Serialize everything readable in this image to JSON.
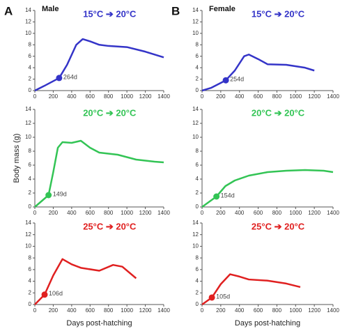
{
  "chart_data": [
    {
      "type": "line",
      "panel_label": "A",
      "subtitle": "Male",
      "title": "15°C ➔ 20°C",
      "x": [
        0,
        100,
        264,
        350,
        450,
        520,
        600,
        700,
        800,
        1000,
        1200,
        1400
      ],
      "series": [
        {
          "color": "#3434c8",
          "values": [
            0,
            0.8,
            2.2,
            4.5,
            8,
            9,
            8.6,
            8,
            7.8,
            7.6,
            6.8,
            5.8
          ]
        }
      ],
      "annotation": {
        "x": 264,
        "y": 2.2,
        "text": "264d"
      },
      "xlim": [
        0,
        1400
      ],
      "ylim": [
        0,
        14
      ],
      "xticks": [
        0,
        200,
        400,
        600,
        800,
        1000,
        1200,
        1400
      ],
      "yticks": [
        0,
        2,
        4,
        6,
        8,
        10,
        12,
        14
      ]
    },
    {
      "type": "line",
      "panel_label": "B",
      "subtitle": "Female",
      "title": "15°C ➔ 20°C",
      "x": [
        0,
        100,
        254,
        350,
        450,
        500,
        600,
        700,
        900,
        1100,
        1200
      ],
      "series": [
        {
          "color": "#3434c8",
          "values": [
            0,
            0.5,
            1.8,
            3.5,
            6,
            6.3,
            5.5,
            4.6,
            4.5,
            4,
            3.5
          ]
        }
      ],
      "annotation": {
        "x": 254,
        "y": 1.8,
        "text": "254d"
      },
      "xlim": [
        0,
        1400
      ],
      "ylim": [
        0,
        14
      ],
      "xticks": [
        0,
        200,
        400,
        600,
        800,
        1000,
        1200,
        1400
      ],
      "yticks": [
        0,
        2,
        4,
        6,
        8,
        10,
        12,
        14
      ]
    },
    {
      "type": "line",
      "title": "20°C ➔ 20°C",
      "y_label": "Body mass (g)",
      "x": [
        0,
        149,
        200,
        250,
        300,
        400,
        500,
        600,
        700,
        900,
        1100,
        1300,
        1400
      ],
      "series": [
        {
          "color": "#33c455",
          "values": [
            0,
            1.7,
            5,
            8.5,
            9.3,
            9.2,
            9.5,
            8.5,
            7.8,
            7.5,
            6.8,
            6.5,
            6.4
          ]
        }
      ],
      "annotation": {
        "x": 149,
        "y": 1.7,
        "text": "149d"
      },
      "xlim": [
        0,
        1400
      ],
      "ylim": [
        0,
        14
      ],
      "xticks": [
        0,
        200,
        400,
        600,
        800,
        1000,
        1200,
        1400
      ],
      "yticks": [
        0,
        2,
        4,
        6,
        8,
        10,
        12,
        14
      ]
    },
    {
      "type": "line",
      "title": "20°C ➔ 20°C",
      "x": [
        0,
        154,
        250,
        350,
        500,
        700,
        900,
        1100,
        1300,
        1400
      ],
      "series": [
        {
          "color": "#33c455",
          "values": [
            0,
            1.5,
            3,
            3.8,
            4.5,
            5,
            5.2,
            5.3,
            5.2,
            5
          ]
        }
      ],
      "annotation": {
        "x": 154,
        "y": 1.5,
        "text": "154d"
      },
      "xlim": [
        0,
        1400
      ],
      "ylim": [
        0,
        14
      ],
      "xticks": [
        0,
        200,
        400,
        600,
        800,
        1000,
        1200,
        1400
      ],
      "yticks": [
        0,
        2,
        4,
        6,
        8,
        10,
        12,
        14
      ]
    },
    {
      "type": "line",
      "title": "25°C ➔ 20°C",
      "x_label": "Days post-hatching",
      "x": [
        0,
        106,
        200,
        300,
        400,
        500,
        700,
        850,
        950,
        1100
      ],
      "series": [
        {
          "color": "#e02020",
          "values": [
            0,
            1.7,
            5,
            7.8,
            6.9,
            6.3,
            5.8,
            6.8,
            6.5,
            4.5
          ]
        }
      ],
      "annotation": {
        "x": 106,
        "y": 1.7,
        "text": "106d"
      },
      "xlim": [
        0,
        1400
      ],
      "ylim": [
        0,
        14
      ],
      "xticks": [
        0,
        200,
        400,
        600,
        800,
        1000,
        1200,
        1400
      ],
      "yticks": [
        0,
        2,
        4,
        6,
        8,
        10,
        12,
        14
      ]
    },
    {
      "type": "line",
      "title": "25°C ➔ 20°C",
      "x_label": "Days post-hatching",
      "x": [
        0,
        105,
        200,
        300,
        400,
        500,
        700,
        900,
        1050
      ],
      "series": [
        {
          "color": "#e02020",
          "values": [
            0,
            1.2,
            3.5,
            5.2,
            4.8,
            4.3,
            4.1,
            3.6,
            3
          ]
        }
      ],
      "annotation": {
        "x": 105,
        "y": 1.2,
        "text": "105d"
      },
      "xlim": [
        0,
        1400
      ],
      "ylim": [
        0,
        14
      ],
      "xticks": [
        0,
        200,
        400,
        600,
        800,
        1000,
        1200,
        1400
      ],
      "yticks": [
        0,
        2,
        4,
        6,
        8,
        10,
        12,
        14
      ]
    }
  ]
}
